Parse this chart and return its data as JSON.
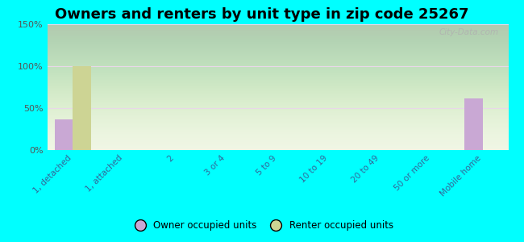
{
  "title": "Owners and renters by unit type in zip code 25267",
  "categories": [
    "1, detached",
    "1, attached",
    "2",
    "3 or 4",
    "5 to 9",
    "10 to 19",
    "20 to 49",
    "50 or more",
    "Mobile home"
  ],
  "owner_values": [
    37,
    0,
    0,
    0,
    0,
    0,
    0,
    0,
    62
  ],
  "renter_values": [
    100,
    0,
    0,
    0,
    0,
    0,
    0,
    0,
    0
  ],
  "owner_color": "#c9a8d4",
  "renter_color": "#cdd494",
  "background_color": "#00ffff",
  "plot_bg_top": "#d8e8c0",
  "plot_bg_bottom": "#eef5e0",
  "ylim": [
    0,
    150
  ],
  "yticks": [
    0,
    50,
    100,
    150
  ],
  "ytick_labels": [
    "0%",
    "50%",
    "100%",
    "150%"
  ],
  "bar_width": 0.35,
  "title_fontsize": 13,
  "watermark": "City-Data.com",
  "grid_color": "#e8d8e8",
  "tick_color": "#336699",
  "ytick_color": "#555555"
}
